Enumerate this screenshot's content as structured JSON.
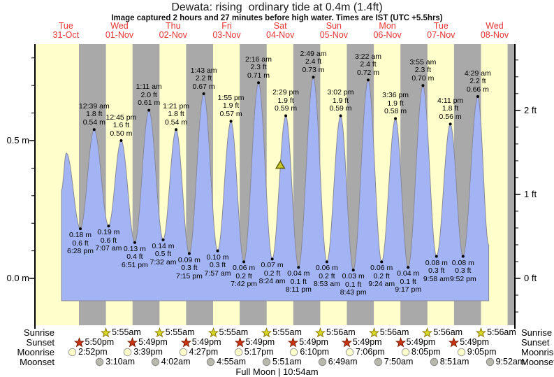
{
  "header": {
    "title": "Dewata: rising  ordinary tide at 0.4m (1.4ft)",
    "subtitle": "Image captured 2 hours and 27 minutes before high water. Times are IST (UTC +5.5hrs)"
  },
  "days": [
    {
      "weekday": "Tue",
      "date": "31-Oct"
    },
    {
      "weekday": "Wed",
      "date": "01-Nov"
    },
    {
      "weekday": "Thu",
      "date": "02-Nov"
    },
    {
      "weekday": "Fri",
      "date": "03-Nov"
    },
    {
      "weekday": "Sat",
      "date": "04-Nov"
    },
    {
      "weekday": "Sun",
      "date": "05-Nov"
    },
    {
      "weekday": "Mon",
      "date": "06-Nov"
    },
    {
      "weekday": "Tue",
      "date": "07-Nov"
    },
    {
      "weekday": "Wed",
      "date": "08-Nov"
    }
  ],
  "chart_data": {
    "type": "area",
    "title": "Dewata: rising  ordinary tide at 0.4m (1.4ft)",
    "y_axis_left": {
      "unit": "m",
      "major": [
        {
          "value": 0.5,
          "label": "0.5 m"
        },
        {
          "value": 0.0,
          "label": "0.0 m"
        }
      ],
      "minor_step": 0.1,
      "minor_min": 0.0,
      "minor_max": 0.8
    },
    "y_axis_right": {
      "unit": "ft",
      "major": [
        {
          "value": 2,
          "label": "2 ft"
        },
        {
          "value": 1,
          "label": "1 ft"
        },
        {
          "value": 0,
          "label": "0 ft"
        }
      ],
      "minor_step": 0.2,
      "minor_min": -0.4,
      "minor_max": 2.6
    },
    "extremes": [
      {
        "type": "low",
        "day": 0,
        "time": "6:28 pm",
        "m_label": "0.18 m",
        "ft_label": "0.6 ft",
        "height_m": 0.18
      },
      {
        "type": "high",
        "day": 1,
        "time": "12:39 am",
        "m_label": "0.54 m",
        "ft_label": "1.8 ft",
        "height_m": 0.54
      },
      {
        "type": "low",
        "day": 1,
        "time": "7:07 am",
        "m_label": "0.19 m",
        "ft_label": "0.6 ft",
        "height_m": 0.19
      },
      {
        "type": "high",
        "day": 1,
        "time": "12:45 pm",
        "m_label": "0.50 m",
        "ft_label": "1.6 ft",
        "height_m": 0.5
      },
      {
        "type": "low",
        "day": 1,
        "time": "6:51 pm",
        "m_label": "0.13 m",
        "ft_label": "0.4 ft",
        "height_m": 0.13
      },
      {
        "type": "high",
        "day": 2,
        "time": "1:11 am",
        "m_label": "0.61 m",
        "ft_label": "2.0 ft",
        "height_m": 0.61
      },
      {
        "type": "low",
        "day": 2,
        "time": "7:32 am",
        "m_label": "0.14 m",
        "ft_label": "0.5 ft",
        "height_m": 0.14
      },
      {
        "type": "high",
        "day": 2,
        "time": "1:21 pm",
        "m_label": "0.54 m",
        "ft_label": "1.8 ft",
        "height_m": 0.54
      },
      {
        "type": "low",
        "day": 2,
        "time": "7:15 pm",
        "m_label": "0.09 m",
        "ft_label": "0.3 ft",
        "height_m": 0.09
      },
      {
        "type": "high",
        "day": 3,
        "time": "1:43 am",
        "m_label": "0.67 m",
        "ft_label": "2.2 ft",
        "height_m": 0.67
      },
      {
        "type": "low",
        "day": 3,
        "time": "7:57 am",
        "m_label": "0.10 m",
        "ft_label": "0.3 ft",
        "height_m": 0.1
      },
      {
        "type": "high",
        "day": 3,
        "time": "1:55 pm",
        "m_label": "0.57 m",
        "ft_label": "1.9 ft",
        "height_m": 0.57
      },
      {
        "type": "low",
        "day": 3,
        "time": "7:42 pm",
        "m_label": "0.06 m",
        "ft_label": "0.2 ft",
        "height_m": 0.06
      },
      {
        "type": "high",
        "day": 4,
        "time": "2:16 am",
        "m_label": "0.71 m",
        "ft_label": "2.3 ft",
        "height_m": 0.71
      },
      {
        "type": "low",
        "day": 4,
        "time": "8:24 am",
        "m_label": "0.07 m",
        "ft_label": "0.2 ft",
        "height_m": 0.07
      },
      {
        "type": "high",
        "day": 4,
        "time": "2:29 pm",
        "m_label": "0.59 m",
        "ft_label": "1.9 ft",
        "height_m": 0.59
      },
      {
        "type": "low",
        "day": 4,
        "time": "8:11 pm",
        "m_label": "0.04 m",
        "ft_label": "0.1 ft",
        "height_m": 0.04
      },
      {
        "type": "high",
        "day": 5,
        "time": "2:49 am",
        "m_label": "0.73 m",
        "ft_label": "2.4 ft",
        "height_m": 0.73
      },
      {
        "type": "low",
        "day": 5,
        "time": "8:53 am",
        "m_label": "0.06 m",
        "ft_label": "0.2 ft",
        "height_m": 0.06
      },
      {
        "type": "high",
        "day": 5,
        "time": "3:02 pm",
        "m_label": "0.59 m",
        "ft_label": "1.9 ft",
        "height_m": 0.59
      },
      {
        "type": "low",
        "day": 5,
        "time": "8:43 pm",
        "m_label": "0.03 m",
        "ft_label": "0.1 ft",
        "height_m": 0.03
      },
      {
        "type": "high",
        "day": 6,
        "time": "3:22 am",
        "m_label": "0.72 m",
        "ft_label": "2.4 ft",
        "height_m": 0.72
      },
      {
        "type": "low",
        "day": 6,
        "time": "9:24 am",
        "m_label": "0.06 m",
        "ft_label": "0.2 ft",
        "height_m": 0.06
      },
      {
        "type": "high",
        "day": 6,
        "time": "3:36 pm",
        "m_label": "0.58 m",
        "ft_label": "1.9 ft",
        "height_m": 0.58
      },
      {
        "type": "low",
        "day": 6,
        "time": "9:17 pm",
        "m_label": "0.04 m",
        "ft_label": "0.1 ft",
        "height_m": 0.04
      },
      {
        "type": "high",
        "day": 7,
        "time": "3:55 am",
        "m_label": "0.70 m",
        "ft_label": "2.3 ft",
        "height_m": 0.7
      },
      {
        "type": "low",
        "day": 7,
        "time": "9:58 am",
        "m_label": "0.08 m",
        "ft_label": "0.3 ft",
        "height_m": 0.08
      },
      {
        "type": "high",
        "day": 7,
        "time": "4:11 pm",
        "m_label": "0.56 m",
        "ft_label": "1.8 ft",
        "height_m": 0.56
      },
      {
        "type": "low",
        "day": 7,
        "time": "9:52 pm",
        "m_label": "0.08 m",
        "ft_label": "0.3 ft",
        "height_m": 0.08
      },
      {
        "type": "high",
        "day": 8,
        "time": "4:29 am",
        "m_label": "0.66 m",
        "ft_label": "2.2 ft",
        "height_m": 0.66
      }
    ],
    "curve_anchors": {
      "start": {
        "day": 0,
        "hour": 10.0,
        "height_m": 0.32
      },
      "unlabeled_high": {
        "day": 0,
        "hour": 12.2,
        "height_m": 0.455
      },
      "end": {
        "day": 8,
        "hour": 9.4,
        "height_m": 0.12
      }
    },
    "capture_marker": {
      "day": 4,
      "hour": 12.03,
      "height_m": 0.41
    },
    "colors": {
      "day_bg": "#ffffcc",
      "night_bg": "#a9a9a9",
      "water": "#a3b4f4",
      "curve": "#88889a",
      "day_label": "#e93434",
      "marker_fill": "#c9c92e",
      "marker_stroke": "#5f5f00"
    }
  },
  "astro": {
    "rows": [
      {
        "label": "Sunrise",
        "icon": "sunrise-star",
        "fill": "#d9d928",
        "stroke": "#8a7a00",
        "entries": [
          {
            "day": 1,
            "time": "5:55am"
          },
          {
            "day": 2,
            "time": "5:55am"
          },
          {
            "day": 3,
            "time": "5:55am"
          },
          {
            "day": 4,
            "time": "5:55am"
          },
          {
            "day": 5,
            "time": "5:56am"
          },
          {
            "day": 6,
            "time": "5:56am"
          },
          {
            "day": 7,
            "time": "5:56am"
          },
          {
            "day": 8,
            "time": "5:56am"
          }
        ]
      },
      {
        "label": "Sunset",
        "icon": "sunset-star",
        "fill": "#cc3311",
        "stroke": "#7a1a00",
        "entries": [
          {
            "day": 0,
            "time": "5:50pm"
          },
          {
            "day": 1,
            "time": "5:49pm"
          },
          {
            "day": 2,
            "time": "5:49pm"
          },
          {
            "day": 3,
            "time": "5:49pm"
          },
          {
            "day": 4,
            "time": "5:49pm"
          },
          {
            "day": 5,
            "time": "5:49pm"
          },
          {
            "day": 6,
            "time": "5:49pm"
          },
          {
            "day": 7,
            "time": "5:49pm"
          }
        ]
      },
      {
        "label": "Moonrise",
        "icon": "moonrise-circle",
        "fill": "#ffffcc",
        "stroke": "#999999",
        "entries": [
          {
            "day": 0,
            "time": "2:52pm"
          },
          {
            "day": 1,
            "time": "3:39pm"
          },
          {
            "day": 2,
            "time": "4:27pm"
          },
          {
            "day": 3,
            "time": "5:17pm"
          },
          {
            "day": 4,
            "time": "6:10pm"
          },
          {
            "day": 5,
            "time": "7:06pm"
          },
          {
            "day": 6,
            "time": "8:05pm"
          },
          {
            "day": 7,
            "time": "9:05pm"
          }
        ]
      },
      {
        "label": "Moonset",
        "icon": "moonset-circle",
        "fill": "#b8b8ac",
        "stroke": "#888888",
        "entries": [
          {
            "day": 1,
            "time": "3:10am"
          },
          {
            "day": 2,
            "time": "4:02am"
          },
          {
            "day": 3,
            "time": "4:55am"
          },
          {
            "day": 4,
            "time": "5:51am"
          },
          {
            "day": 5,
            "time": "6:49am"
          },
          {
            "day": 6,
            "time": "7:50am"
          },
          {
            "day": 7,
            "time": "8:51am"
          },
          {
            "day": 8,
            "time": "9:52am"
          }
        ]
      }
    ],
    "footer": "Full Moon | 10:54am"
  }
}
